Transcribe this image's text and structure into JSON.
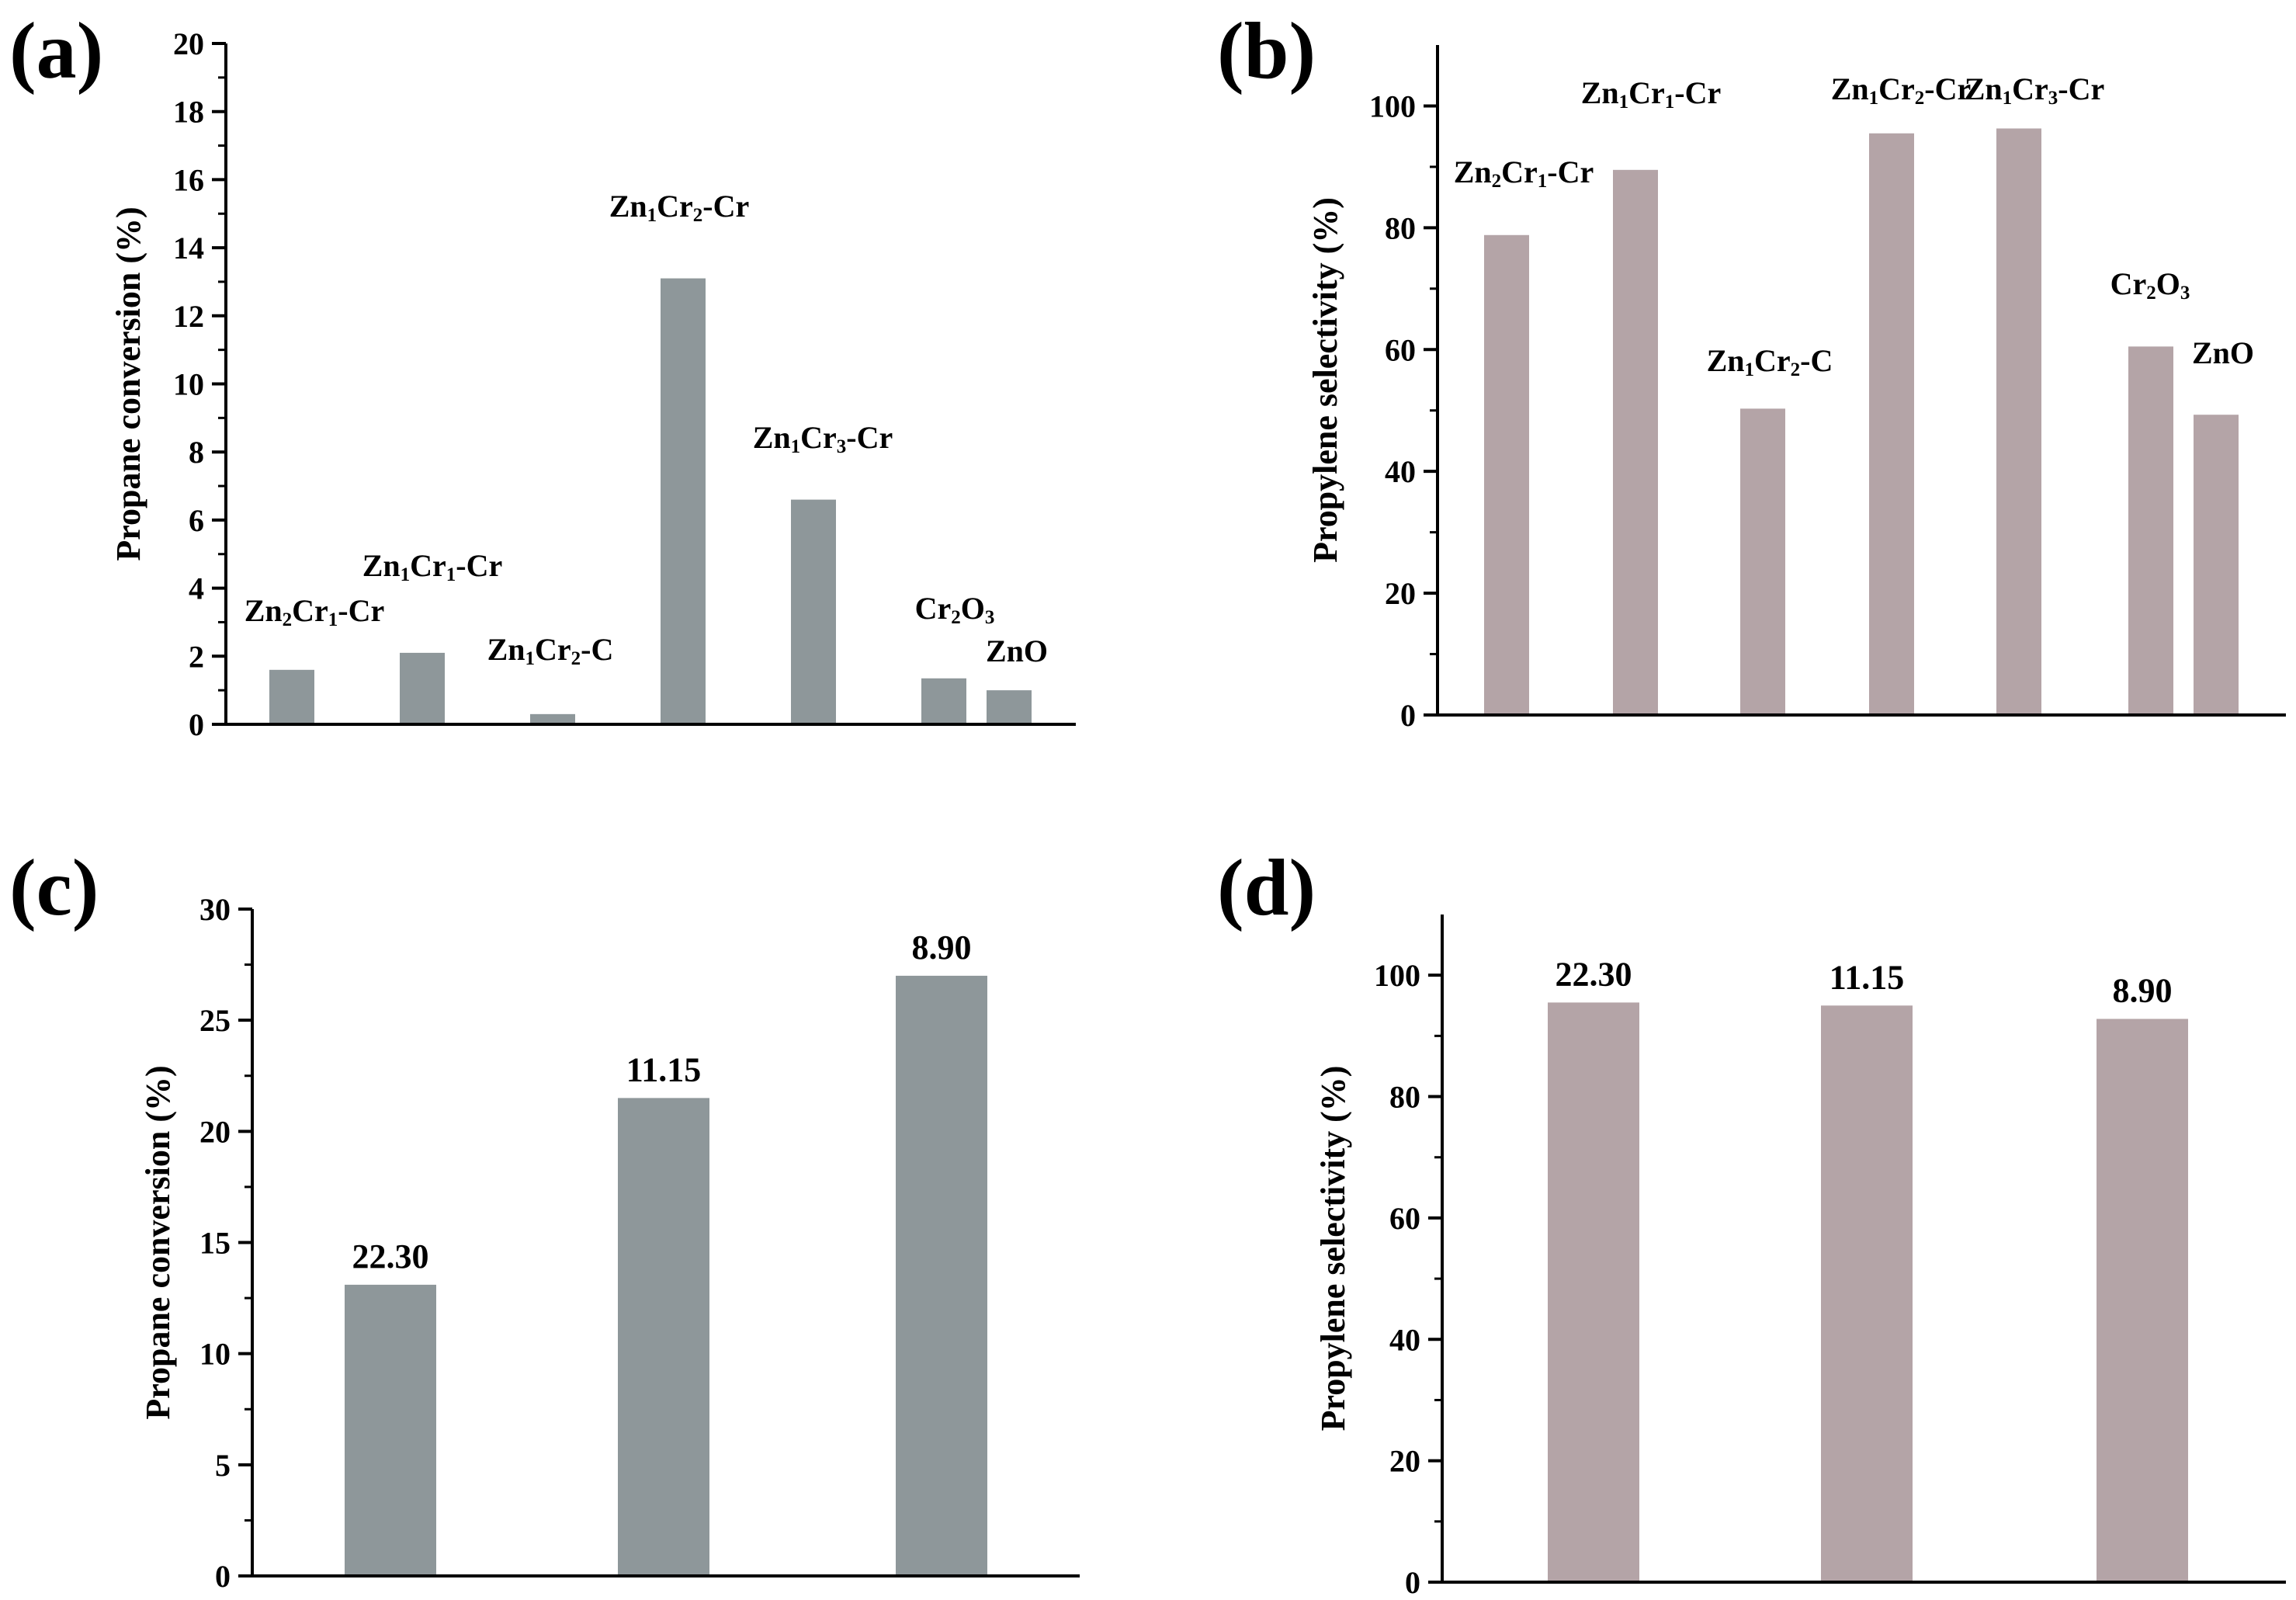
{
  "chart_data": [
    {
      "panel_label": "(a)",
      "type": "bar",
      "ylabel": "Propane conversion (%)",
      "xlabel": "",
      "ylim": [
        0,
        20
      ],
      "ytick_step": 2,
      "bar_color": "#8e979a",
      "categories": [
        {
          "base": "Zn",
          "s1": "2",
          "mid": "Cr",
          "s2": "1",
          "tail": "-Cr",
          "value": 1.6
        },
        {
          "base": "Zn",
          "s1": "1",
          "mid": "Cr",
          "s2": "1",
          "tail": "-Cr",
          "value": 2.1
        },
        {
          "base": "Zn",
          "s1": "1",
          "mid": "Cr",
          "s2": "2",
          "tail": "-C",
          "value": 0.3
        },
        {
          "base": "Zn",
          "s1": "1",
          "mid": "Cr",
          "s2": "2",
          "tail": "-Cr",
          "value": 13.1
        },
        {
          "base": "Zn",
          "s1": "1",
          "mid": "Cr",
          "s2": "3",
          "tail": "-Cr",
          "value": 6.6
        },
        {
          "base": "Cr",
          "s1": "2",
          "mid": "O",
          "s2": "3",
          "tail": "",
          "value": 1.35
        },
        {
          "base": "ZnO",
          "s1": "",
          "mid": "",
          "s2": "",
          "tail": "",
          "value": 1.0
        }
      ]
    },
    {
      "panel_label": "(b)",
      "type": "bar",
      "ylabel": "Propylene selectivity (%)",
      "xlabel": "",
      "ylim": [
        0,
        110
      ],
      "yticks": [
        0,
        20,
        40,
        60,
        80,
        100
      ],
      "bar_color": "#b4a4a7",
      "categories": [
        {
          "base": "Zn",
          "s1": "2",
          "mid": "Cr",
          "s2": "1",
          "tail": "-Cr",
          "value": 78.8
        },
        {
          "base": "Zn",
          "s1": "1",
          "mid": "Cr",
          "s2": "1",
          "tail": "-Cr",
          "value": 89.5
        },
        {
          "base": "Zn",
          "s1": "1",
          "mid": "Cr",
          "s2": "2",
          "tail": "-C",
          "value": 50.3
        },
        {
          "base": "Zn",
          "s1": "1",
          "mid": "Cr",
          "s2": "2",
          "tail": "-Cr",
          "value": 95.5
        },
        {
          "base": "Zn",
          "s1": "1",
          "mid": "Cr",
          "s2": "3",
          "tail": "-Cr",
          "value": 96.3
        },
        {
          "base": "Cr",
          "s1": "2",
          "mid": "O",
          "s2": "3",
          "tail": "",
          "value": 60.5
        },
        {
          "base": "ZnO",
          "s1": "",
          "mid": "",
          "s2": "",
          "tail": "",
          "value": 49.3
        }
      ]
    },
    {
      "panel_label": "(c)",
      "type": "bar",
      "ylabel": "Propane conversion (%)",
      "xlabel": "",
      "ylim": [
        0,
        30
      ],
      "ytick_step": 5,
      "bar_color": "#8e979a",
      "categories": [
        {
          "label": "22.30",
          "value": 13.1
        },
        {
          "label": "11.15",
          "value": 21.5
        },
        {
          "label": "8.90",
          "value": 27.0
        }
      ]
    },
    {
      "panel_label": "(d)",
      "type": "bar",
      "ylabel": "Propylene selectivity (%)",
      "xlabel": "",
      "ylim": [
        0,
        110
      ],
      "yticks": [
        0,
        20,
        40,
        60,
        80,
        100
      ],
      "bar_color": "#b4a4a7",
      "categories": [
        {
          "label": "22.30",
          "value": 95.5
        },
        {
          "label": "11.15",
          "value": 95.0
        },
        {
          "label": "8.90",
          "value": 92.8
        }
      ]
    }
  ]
}
